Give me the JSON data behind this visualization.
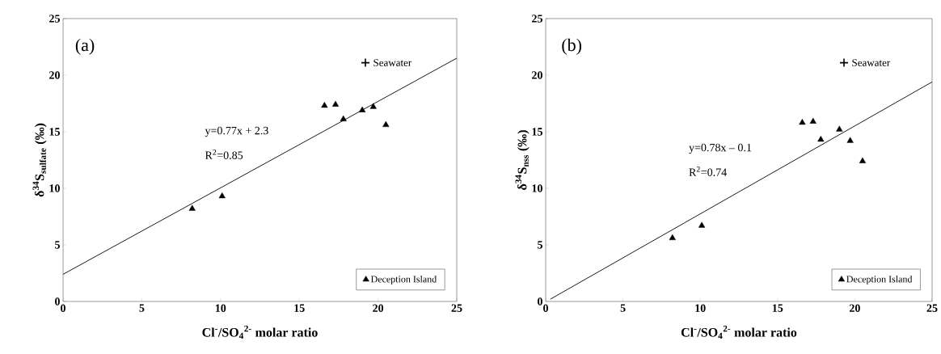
{
  "chart_data": [
    {
      "type": "scatter",
      "xlabel": "Cl$^{-}$/SO$_{4}$$^{2-}$ molar ratio",
      "ylabel": "δ$^{34}$S$_{sulfate}$ (‰)",
      "xlim": [
        0,
        25
      ],
      "ylim": [
        0,
        25
      ],
      "xticks": [
        0,
        5,
        10,
        15,
        20,
        25
      ],
      "yticks": [
        0,
        5,
        10,
        15,
        20,
        25
      ],
      "grid": false,
      "legend": "bottom right",
      "annotations": [
        "(a)",
        "y=0.77x + 2.3",
        "R$^{2}$=0.85"
      ],
      "series": [
        {
          "name": "Deception Island",
          "color": "#000000",
          "marker": "triangle",
          "x": [
            8.2,
            10.1,
            16.6,
            17.3,
            17.8,
            19.0,
            19.7,
            20.5
          ],
          "values": [
            8.2,
            9.3,
            17.3,
            17.4,
            16.1,
            16.9,
            17.2,
            15.6
          ]
        },
        {
          "name": "Seawater",
          "color": "#000000",
          "marker": "cross",
          "x": [
            19.2
          ],
          "values": [
            21.1
          ]
        },
        {
          "type": "line",
          "color": "#000000",
          "line_style": "solid",
          "marker": "none",
          "x": [
            0,
            25
          ],
          "values": [
            2.4,
            21.5
          ]
        }
      ]
    },
    {
      "type": "scatter",
      "xlabel": "Cl$^{-}$/SO$_{4}$$^{2-}$ molar ratio",
      "ylabel": "δ$^{34}$S$_{nss}$ (‰)",
      "xlim": [
        0,
        25
      ],
      "ylim": [
        0,
        25
      ],
      "xticks": [
        0,
        5,
        10,
        15,
        20,
        25
      ],
      "yticks": [
        0,
        5,
        10,
        15,
        20,
        25
      ],
      "grid": false,
      "legend": "bottom right",
      "annotations": [
        "(b)",
        "y=0.78x – 0.1",
        "R$^{2}$=0.74"
      ],
      "series": [
        {
          "name": "Deception Island",
          "color": "#000000",
          "marker": "triangle",
          "x": [
            8.2,
            10.1,
            16.6,
            17.3,
            17.8,
            19.0,
            19.7,
            20.5
          ],
          "values": [
            5.6,
            6.7,
            15.8,
            15.9,
            14.3,
            15.2,
            14.2,
            12.4
          ]
        },
        {
          "name": "Seawater",
          "color": "#000000",
          "marker": "cross",
          "x": [
            19.3
          ],
          "values": [
            21.1
          ]
        },
        {
          "type": "line",
          "color": "#000000",
          "line_style": "solid",
          "marker": "none",
          "x": [
            0.3,
            25
          ],
          "values": [
            0.2,
            19.4
          ]
        }
      ]
    }
  ]
}
